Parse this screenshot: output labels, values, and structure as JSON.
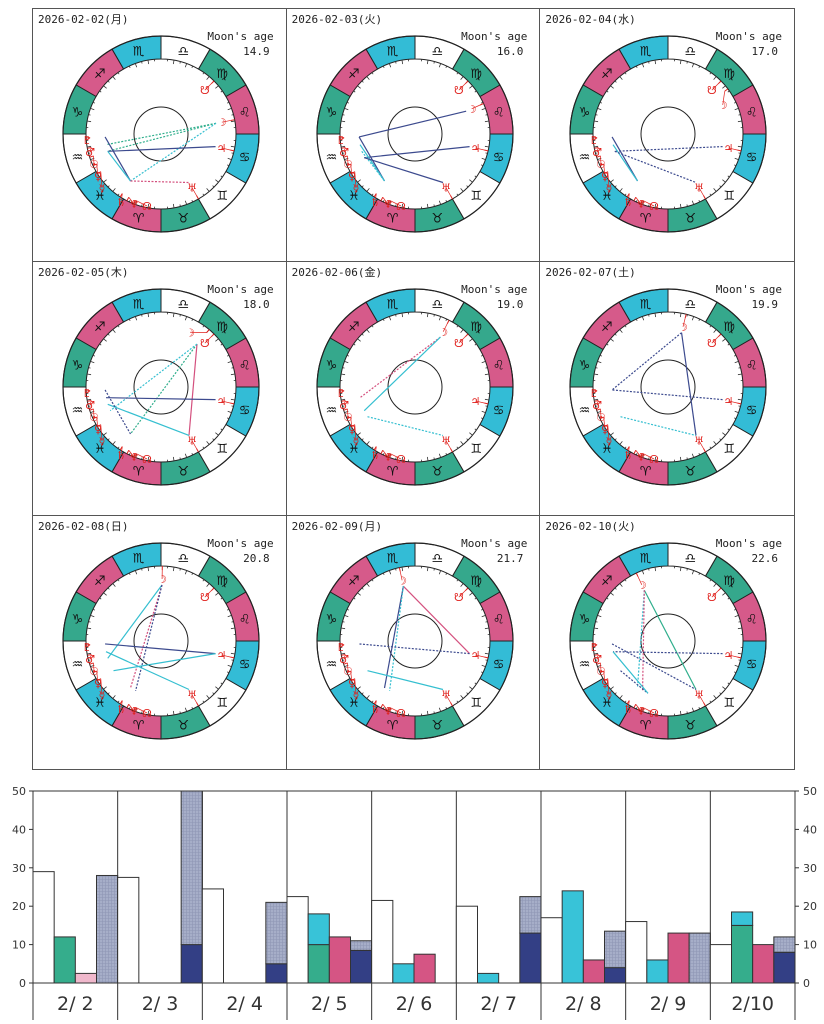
{
  "colors": {
    "fire": "#d65a8a",
    "earth": "#35a88c",
    "air": "#ffffff",
    "water": "#33bcd6",
    "planet": "#e0201c",
    "navy": "#3c4a8e",
    "cyan": "#35bfd0",
    "green": "#2fae8c",
    "pink": "#d4507e"
  },
  "zodiac": [
    {
      "sign": "Aries",
      "glyph": "♈",
      "element": "fire"
    },
    {
      "sign": "Taurus",
      "glyph": "♉",
      "element": "earth"
    },
    {
      "sign": "Gemini",
      "glyph": "♊",
      "element": "air"
    },
    {
      "sign": "Cancer",
      "glyph": "♋",
      "element": "water"
    },
    {
      "sign": "Leo",
      "glyph": "♌",
      "element": "fire"
    },
    {
      "sign": "Virgo",
      "glyph": "♍",
      "element": "earth"
    },
    {
      "sign": "Libra",
      "glyph": "♎",
      "element": "air"
    },
    {
      "sign": "Scorpio",
      "glyph": "♏",
      "element": "water"
    },
    {
      "sign": "Sagittarius",
      "glyph": "♐",
      "element": "fire"
    },
    {
      "sign": "Capricorn",
      "glyph": "♑",
      "element": "earth"
    },
    {
      "sign": "Aquarius",
      "glyph": "♒",
      "element": "air"
    },
    {
      "sign": "Pisces",
      "glyph": "♓",
      "element": "water"
    }
  ],
  "planets": [
    {
      "name": "pluto",
      "glyph": "♇",
      "lon": 303
    },
    {
      "name": "mars",
      "glyph": "♂",
      "lon": 311
    },
    {
      "name": "sun",
      "glyph": "☉",
      "lon": 318
    },
    {
      "name": "venus",
      "glyph": "♀",
      "lon": 325
    },
    {
      "name": "mercury",
      "glyph": "☿",
      "lon": 332
    },
    {
      "name": "saturn",
      "glyph": "♄",
      "lon": 357
    },
    {
      "name": "neptune",
      "glyph": "♆",
      "lon": 3
    },
    {
      "name": "north-node",
      "glyph": "☊",
      "lon": 9
    },
    {
      "name": "uranus",
      "glyph": "♅",
      "lon": 60
    },
    {
      "name": "jupiter",
      "glyph": "♃",
      "lon": 107
    },
    {
      "name": "south-node",
      "glyph": "☋",
      "lon": 165
    }
  ],
  "moon_glyph": "☽",
  "moon_age_label": "Moon's age",
  "charts": [
    {
      "date": "2026-02-02(月)",
      "moon_age": "14.9",
      "moon_lon": 131,
      "aspects": [
        [
          "moon",
          "sun",
          "green",
          "dot"
        ],
        [
          "moon",
          "mars",
          "green",
          "dot"
        ],
        [
          "moon",
          "saturn",
          "cyan",
          "dot"
        ],
        [
          "jupiter",
          "sun",
          "navy",
          "solid"
        ],
        [
          "pluto",
          "saturn",
          "navy",
          "solid"
        ],
        [
          "sun",
          "saturn",
          "cyan",
          "solid"
        ],
        [
          "saturn",
          "uranus",
          "pink",
          "dot"
        ]
      ]
    },
    {
      "date": "2026-02-03(火)",
      "moon_age": "16.0",
      "moon_lon": 144,
      "aspects": [
        [
          "moon",
          "pluto",
          "navy",
          "solid"
        ],
        [
          "jupiter",
          "venus",
          "navy",
          "solid"
        ],
        [
          "pluto",
          "saturn",
          "navy",
          "solid"
        ],
        [
          "mars",
          "saturn",
          "cyan",
          "solid"
        ],
        [
          "sun",
          "saturn",
          "cyan",
          "dot"
        ],
        [
          "venus",
          "uranus",
          "navy",
          "solid"
        ]
      ]
    },
    {
      "date": "2026-02-04(水)",
      "moon_age": "17.0",
      "moon_lon": 157,
      "aspects": [
        [
          "jupiter",
          "sun",
          "navy",
          "dot"
        ],
        [
          "pluto",
          "saturn",
          "navy",
          "solid"
        ],
        [
          "mars",
          "saturn",
          "cyan",
          "solid"
        ],
        [
          "sun",
          "uranus",
          "navy",
          "dot"
        ]
      ]
    },
    {
      "date": "2026-02-05(木)",
      "moon_age": "18.0",
      "moon_lon": 170,
      "aspects": [
        [
          "moon",
          "saturn",
          "green",
          "dot"
        ],
        [
          "moon",
          "uranus",
          "pink",
          "solid"
        ],
        [
          "moon",
          "venus",
          "cyan",
          "dot"
        ],
        [
          "jupiter",
          "mars",
          "navy",
          "solid"
        ],
        [
          "uranus",
          "sun",
          "cyan",
          "solid"
        ],
        [
          "pluto",
          "saturn",
          "navy",
          "dot"
        ]
      ]
    },
    {
      "date": "2026-02-06(金)",
      "moon_age": "19.0",
      "moon_lon": 183,
      "aspects": [
        [
          "moon",
          "mars",
          "pink",
          "dot"
        ],
        [
          "moon",
          "venus",
          "cyan",
          "solid"
        ],
        [
          "mercury",
          "uranus",
          "cyan",
          "dot"
        ]
      ]
    },
    {
      "date": "2026-02-07(土)",
      "moon_age": "19.9",
      "moon_lon": 196,
      "aspects": [
        [
          "moon",
          "pluto",
          "navy",
          "dot"
        ],
        [
          "moon",
          "uranus",
          "navy",
          "solid"
        ],
        [
          "jupiter",
          "pluto",
          "navy",
          "dot"
        ],
        [
          "mercury",
          "uranus",
          "cyan",
          "dot"
        ]
      ]
    },
    {
      "date": "2026-02-08(日)",
      "moon_age": "20.8",
      "moon_lon": 209,
      "aspects": [
        [
          "moon",
          "sun",
          "cyan",
          "solid"
        ],
        [
          "moon",
          "saturn",
          "pink",
          "dot"
        ],
        [
          "moon",
          "neptune",
          "navy",
          "dot"
        ],
        [
          "jupiter",
          "pluto",
          "navy",
          "solid"
        ],
        [
          "jupiter",
          "mercury",
          "cyan",
          "solid"
        ],
        [
          "mars",
          "uranus",
          "cyan",
          "solid"
        ]
      ]
    },
    {
      "date": "2026-02-09(月)",
      "moon_age": "21.7",
      "moon_lon": 222,
      "aspects": [
        [
          "moon",
          "saturn",
          "navy",
          "solid"
        ],
        [
          "moon",
          "jupiter",
          "pink",
          "solid"
        ],
        [
          "moon",
          "neptune",
          "cyan",
          "dot"
        ],
        [
          "jupiter",
          "pluto",
          "navy",
          "dot"
        ],
        [
          "mercury",
          "uranus",
          "cyan",
          "solid"
        ]
      ]
    },
    {
      "date": "2026-02-10(火)",
      "moon_age": "22.6",
      "moon_lon": 235,
      "aspects": [
        [
          "moon",
          "uranus",
          "green",
          "solid"
        ],
        [
          "moon",
          "saturn",
          "cyan",
          "dot"
        ],
        [
          "moon",
          "neptune",
          "pink",
          "dot"
        ],
        [
          "jupiter",
          "mars",
          "navy",
          "dot"
        ],
        [
          "pluto",
          "uranus",
          "navy",
          "dot"
        ],
        [
          "mercury",
          "north-node",
          "navy",
          "dot"
        ],
        [
          "mars",
          "north-node",
          "cyan",
          "solid"
        ]
      ]
    }
  ],
  "chart_data": {
    "type": "bar",
    "categories": [
      "2/ 2",
      "2/ 3",
      "2/ 4",
      "2/ 5",
      "2/ 6",
      "2/ 7",
      "2/ 8",
      "2/ 9",
      "2/10"
    ],
    "ylim": [
      0,
      50
    ],
    "yticks": [
      0,
      10,
      20,
      30,
      40,
      50
    ],
    "grid": false,
    "series": [
      {
        "slot": 1,
        "color": "#ffffff",
        "values": [
          29,
          27.5,
          24.5,
          22.5,
          21.5,
          20,
          17,
          16,
          10
        ]
      },
      {
        "slot": 2,
        "color": "#35ad8c",
        "values": [
          12,
          0,
          0,
          10,
          0,
          0,
          0,
          0,
          15
        ]
      },
      {
        "slot": 2,
        "stack_on": "green",
        "color": "#38c3d8",
        "values": [
          0,
          0,
          0,
          8,
          5,
          2.5,
          24,
          6,
          3.5
        ]
      },
      {
        "slot": 3,
        "color": "#d55584",
        "colors": [
          "#f0b8cc",
          "#d55584",
          "#d55584",
          "#d55584",
          "#d55584",
          "#d55584",
          "#d55584",
          "#d55584",
          "#d55584"
        ],
        "values": [
          2.5,
          0,
          0,
          12,
          7.5,
          0,
          6,
          13,
          10
        ]
      },
      {
        "slot": 4,
        "color": "#333f85",
        "values": [
          0,
          10,
          5,
          8.5,
          0,
          13,
          4,
          0,
          8
        ]
      },
      {
        "slot": 4,
        "stack_on": "navy",
        "color": "#a6aec8",
        "values": [
          28,
          40,
          16,
          2.5,
          0,
          9.5,
          9.5,
          13,
          4
        ]
      }
    ]
  }
}
